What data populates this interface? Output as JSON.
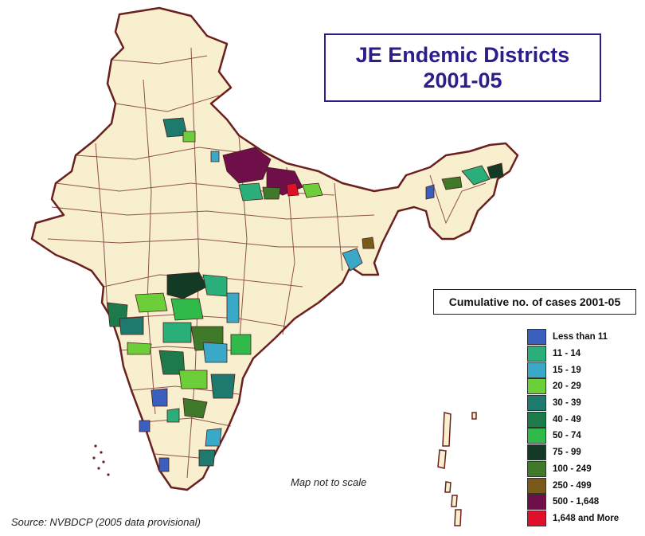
{
  "title": {
    "line1": "JE Endemic Districts",
    "line2": "2001-05"
  },
  "legend": {
    "title": "Cumulative no. of cases 2001-05",
    "items": [
      {
        "label": "Less than 11",
        "color": "#3a5fbf"
      },
      {
        "label": "11 - 14",
        "color": "#2aae7a"
      },
      {
        "label": "15 - 19",
        "color": "#3aa9c8"
      },
      {
        "label": "20 - 29",
        "color": "#6ccf3a"
      },
      {
        "label": "30 - 39",
        "color": "#1f7a6e"
      },
      {
        "label": "40 - 49",
        "color": "#1d7a4a"
      },
      {
        "label": "50 - 74",
        "color": "#2fba4a"
      },
      {
        "label": "75 - 99",
        "color": "#133a25"
      },
      {
        "label": "100 - 249",
        "color": "#3f7a2a"
      },
      {
        "label": "250 - 499",
        "color": "#7a5a1a"
      },
      {
        "label": "500 - 1,648",
        "color": "#6e0f4a"
      },
      {
        "label": "1,648 and More",
        "color": "#e0102a"
      }
    ]
  },
  "note": "Map not to scale",
  "source": "Source: NVBDCP (2005 data provisional)",
  "colors": {
    "land": "#f8efcf",
    "border": "#6b2020",
    "title": "#2b1e8a"
  }
}
